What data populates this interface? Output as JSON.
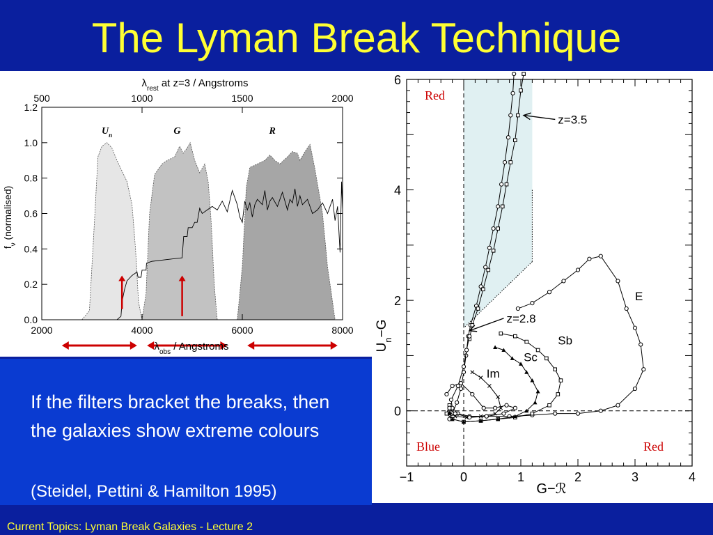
{
  "slide": {
    "title": "The Lyman Break Technique",
    "bullet": "If the filters bracket the breaks, then the galaxies show extreme colours",
    "citation": "(Steidel, Pettini & Hamilton 1995)",
    "footer": "Current Topics:  Lyman Break Galaxies - Lecture 2"
  },
  "colors": {
    "background": "#0a1f9e",
    "title": "#ffff33",
    "text_panel": "#0a3bd1",
    "arrow": "#cc0000",
    "shade": "#e0f0f2"
  },
  "chart_data": [
    {
      "type": "area",
      "top_axis_label_symbol": "λ",
      "top_axis_label_sub": "rest",
      "top_axis_label_rest": " at z=3 / Angstroms",
      "bottom_axis_label_symbol": "λ",
      "bottom_axis_label_sub": "obs",
      "bottom_axis_label_rest": " / Angstroms",
      "ylabel_symbol": "f",
      "ylabel_sub": "ν",
      "ylabel_rest": " (normalised)",
      "xlim": [
        2000,
        8000
      ],
      "top_xlim": [
        500,
        2000
      ],
      "ylim": [
        0,
        1.2
      ],
      "x_ticks": [
        "2000",
        "4000",
        "6000",
        "8000"
      ],
      "x_tick_values": [
        2000,
        4000,
        6000,
        8000
      ],
      "top_ticks": [
        "500",
        "1000",
        "1500",
        "2000"
      ],
      "top_tick_values": [
        500,
        1000,
        1500,
        2000
      ],
      "y_ticks": [
        "0.0",
        "0.2",
        "0.4",
        "0.6",
        "0.8",
        "1.0",
        "1.2"
      ],
      "y_tick_values": [
        0,
        0.2,
        0.4,
        0.6,
        0.8,
        1.0,
        1.2
      ],
      "filters": [
        {
          "name": "U",
          "sub": "n",
          "label_x": 3300,
          "points": [
            [
              2800,
              0
            ],
            [
              2950,
              0.05
            ],
            [
              3050,
              0.55
            ],
            [
              3120,
              0.92
            ],
            [
              3200,
              0.98
            ],
            [
              3300,
              1.0
            ],
            [
              3400,
              0.97
            ],
            [
              3500,
              0.9
            ],
            [
              3600,
              0.84
            ],
            [
              3700,
              0.78
            ],
            [
              3800,
              0.65
            ],
            [
              3870,
              0.4
            ],
            [
              3930,
              0.1
            ],
            [
              4000,
              0
            ]
          ]
        },
        {
          "name": "G",
          "sub": "",
          "label_x": 4700,
          "points": [
            [
              4000,
              0
            ],
            [
              4080,
              0.15
            ],
            [
              4150,
              0.6
            ],
            [
              4250,
              0.82
            ],
            [
              4400,
              0.88
            ],
            [
              4500,
              0.9
            ],
            [
              4650,
              0.92
            ],
            [
              4750,
              0.98
            ],
            [
              4820,
              0.94
            ],
            [
              4900,
              0.97
            ],
            [
              4960,
              1.0
            ],
            [
              5050,
              0.9
            ],
            [
              5150,
              0.83
            ],
            [
              5250,
              0.88
            ],
            [
              5320,
              0.78
            ],
            [
              5380,
              0.55
            ],
            [
              5440,
              0.2
            ],
            [
              5500,
              0
            ]
          ]
        },
        {
          "name": "R",
          "sub": "",
          "label_x": 6600,
          "points": [
            [
              5900,
              0
            ],
            [
              6000,
              0.3
            ],
            [
              6080,
              0.75
            ],
            [
              6150,
              0.86
            ],
            [
              6300,
              0.88
            ],
            [
              6450,
              0.9
            ],
            [
              6550,
              0.93
            ],
            [
              6650,
              0.9
            ],
            [
              6750,
              0.88
            ],
            [
              6900,
              0.92
            ],
            [
              7000,
              0.95
            ],
            [
              7100,
              0.94
            ],
            [
              7150,
              0.9
            ],
            [
              7250,
              0.95
            ],
            [
              7350,
              0.99
            ],
            [
              7450,
              0.85
            ],
            [
              7600,
              0.6
            ],
            [
              7700,
              0.3
            ],
            [
              7850,
              0
            ]
          ]
        }
      ],
      "spectrum": [
        [
          3500,
          0
        ],
        [
          3580,
          0.02
        ],
        [
          3600,
          0.1
        ],
        [
          3650,
          0.17
        ],
        [
          3700,
          0.22
        ],
        [
          3800,
          0.25
        ],
        [
          3900,
          0.27
        ],
        [
          3920,
          0.24
        ],
        [
          3980,
          0.24
        ],
        [
          4000,
          0.28
        ],
        [
          4080,
          0.28
        ],
        [
          4090,
          0.32
        ],
        [
          4200,
          0.33
        ],
        [
          4500,
          0.34
        ],
        [
          4800,
          0.35
        ],
        [
          4830,
          0.47
        ],
        [
          4900,
          0.47
        ],
        [
          4920,
          0.52
        ],
        [
          5000,
          0.52
        ],
        [
          5050,
          0.55
        ],
        [
          5100,
          0.55
        ],
        [
          5150,
          0.63
        ],
        [
          5200,
          0.6
        ],
        [
          5300,
          0.62
        ],
        [
          5400,
          0.64
        ],
        [
          5500,
          0.62
        ],
        [
          5600,
          0.67
        ],
        [
          5700,
          0.61
        ],
        [
          5800,
          0.73
        ],
        [
          5850,
          0.69
        ],
        [
          5900,
          0.65
        ],
        [
          5950,
          0.58
        ],
        [
          6000,
          0.55
        ],
        [
          6050,
          0.67
        ],
        [
          6100,
          0.62
        ],
        [
          6150,
          0.66
        ],
        [
          6200,
          0.58
        ],
        [
          6250,
          0.65
        ],
        [
          6300,
          0.68
        ],
        [
          6400,
          0.65
        ],
        [
          6450,
          0.73
        ],
        [
          6500,
          0.62
        ],
        [
          6550,
          0.67
        ],
        [
          6600,
          0.69
        ],
        [
          6700,
          0.64
        ],
        [
          6750,
          0.68
        ],
        [
          6800,
          0.72
        ],
        [
          6900,
          0.62
        ],
        [
          6950,
          0.68
        ],
        [
          7000,
          0.66
        ],
        [
          7050,
          0.74
        ],
        [
          7100,
          0.64
        ],
        [
          7150,
          0.7
        ],
        [
          7200,
          0.65
        ],
        [
          7300,
          0.68
        ],
        [
          7400,
          0.6
        ],
        [
          7500,
          0.62
        ],
        [
          7600,
          0.66
        ],
        [
          7700,
          0.6
        ],
        [
          7800,
          0.68
        ],
        [
          7850,
          0.56
        ],
        [
          7900,
          0.64
        ],
        [
          7950,
          0.38
        ],
        [
          7980,
          0.78
        ],
        [
          8000,
          0.62
        ]
      ],
      "vertical_arrows": [
        [
          3600,
          0.06,
          0.25
        ],
        [
          4800,
          0.02,
          0.25
        ]
      ],
      "horizontal_arrows": [
        [
          2400,
          3900
        ],
        [
          4100,
          5700
        ],
        [
          6100,
          7900
        ]
      ]
    },
    {
      "type": "line",
      "xlabel": "G−ℛ",
      "ylabel_main": "U",
      "ylabel_sub": "n",
      "ylabel_rest": "−G",
      "xlim": [
        -1,
        4
      ],
      "ylim": [
        -1,
        6
      ],
      "x_ticks": [
        "−1",
        "0",
        "1",
        "2",
        "3",
        "4"
      ],
      "x_tick_values": [
        -1,
        0,
        1,
        2,
        3,
        4
      ],
      "y_ticks": [
        "0",
        "2",
        "4",
        "6"
      ],
      "y_tick_values": [
        0,
        2,
        4,
        6
      ],
      "corner_labels": {
        "top_left": "Red",
        "bottom_left": "Blue",
        "bottom_right": "Red"
      },
      "selection_region": [
        [
          0,
          6
        ],
        [
          1.2,
          6
        ],
        [
          1.2,
          2.7
        ],
        [
          0,
          1.5
        ]
      ],
      "annotations": [
        {
          "text": "z=3.5",
          "x": 1.65,
          "y": 5.2,
          "arrow_to": [
            1.05,
            5.35
          ]
        },
        {
          "text": "z=2.8",
          "x": 0.75,
          "y": 1.6,
          "arrow_to": [
            0.1,
            1.45
          ]
        },
        {
          "text": "E",
          "x": 3.0,
          "y": 2.0
        },
        {
          "text": "Sb",
          "x": 1.65,
          "y": 1.2
        },
        {
          "text": "Sc",
          "x": 1.05,
          "y": 0.9
        },
        {
          "text": "Im",
          "x": 0.4,
          "y": 0.6
        }
      ],
      "series": [
        {
          "marker": "circle",
          "values": [
            [
              0.88,
              6.1
            ],
            [
              0.86,
              5.75
            ],
            [
              0.82,
              5.35
            ],
            [
              0.78,
              4.95
            ],
            [
              0.72,
              4.5
            ],
            [
              0.66,
              4.1
            ],
            [
              0.6,
              3.7
            ],
            [
              0.52,
              3.3
            ],
            [
              0.45,
              2.95
            ],
            [
              0.38,
              2.6
            ],
            [
              0.3,
              2.25
            ],
            [
              0.22,
              1.9
            ],
            [
              0.12,
              1.55
            ],
            [
              0.08,
              1.35
            ],
            [
              0.04,
              1.0
            ],
            [
              0.0,
              0.7
            ],
            [
              -0.05,
              0.4
            ],
            [
              -0.12,
              0.15
            ],
            [
              -0.2,
              -0.05
            ],
            [
              -0.25,
              -0.15
            ]
          ]
        },
        {
          "marker": "square",
          "values": [
            [
              1.05,
              6.1
            ],
            [
              1.0,
              5.8
            ],
            [
              0.95,
              5.35
            ],
            [
              0.9,
              4.9
            ],
            [
              0.82,
              4.5
            ],
            [
              0.75,
              4.1
            ],
            [
              0.68,
              3.7
            ],
            [
              0.6,
              3.3
            ],
            [
              0.52,
              2.9
            ],
            [
              0.43,
              2.55
            ],
            [
              0.34,
              2.2
            ],
            [
              0.25,
              1.85
            ],
            [
              0.15,
              1.55
            ],
            [
              0.1,
              1.3
            ]
          ]
        },
        {
          "marker": "circle",
          "values": [
            [
              0.95,
              1.85
            ],
            [
              1.2,
              1.95
            ],
            [
              1.5,
              2.15
            ],
            [
              1.75,
              2.35
            ],
            [
              2.0,
              2.55
            ],
            [
              2.2,
              2.75
            ],
            [
              2.4,
              2.8
            ],
            [
              2.7,
              2.35
            ],
            [
              2.85,
              1.85
            ],
            [
              3.0,
              1.5
            ],
            [
              3.1,
              1.2
            ],
            [
              3.15,
              0.75
            ],
            [
              3.0,
              0.4
            ],
            [
              2.7,
              0.1
            ],
            [
              2.4,
              0.0
            ],
            [
              2.0,
              -0.05
            ],
            [
              1.6,
              -0.05
            ],
            [
              1.2,
              -0.08
            ],
            [
              0.8,
              -0.1
            ],
            [
              0.4,
              -0.1
            ],
            [
              0.1,
              -0.1
            ],
            [
              -0.1,
              -0.05
            ],
            [
              -0.2,
              0.05
            ],
            [
              -0.22,
              0.2
            ],
            [
              -0.1,
              0.45
            ],
            [
              0.0,
              0.8
            ],
            [
              0.05,
              1.1
            ],
            [
              0.1,
              1.35
            ]
          ]
        },
        {
          "marker": "square",
          "values": [
            [
              0.65,
              1.4
            ],
            [
              0.9,
              1.35
            ],
            [
              1.1,
              1.25
            ],
            [
              1.3,
              1.1
            ],
            [
              1.45,
              0.95
            ],
            [
              1.6,
              0.75
            ],
            [
              1.7,
              0.55
            ],
            [
              1.65,
              0.3
            ],
            [
              1.5,
              0.1
            ],
            [
              1.2,
              -0.05
            ],
            [
              0.9,
              -0.12
            ],
            [
              0.6,
              -0.15
            ],
            [
              0.3,
              -0.18
            ],
            [
              0.0,
              -0.2
            ],
            [
              -0.2,
              -0.15
            ],
            [
              -0.3,
              -0.05
            ],
            [
              -0.25,
              0.1
            ]
          ]
        },
        {
          "marker": "triangle",
          "values": [
            [
              0.55,
              1.15
            ],
            [
              0.7,
              1.1
            ],
            [
              0.85,
              0.95
            ],
            [
              1.0,
              0.85
            ],
            [
              1.1,
              0.7
            ],
            [
              1.2,
              0.55
            ],
            [
              1.3,
              0.35
            ],
            [
              1.25,
              0.15
            ],
            [
              1.1,
              0.0
            ],
            [
              0.9,
              -0.1
            ],
            [
              0.6,
              -0.15
            ],
            [
              0.3,
              -0.18
            ],
            [
              0.0,
              -0.2
            ],
            [
              -0.2,
              -0.15
            ],
            [
              -0.25,
              -0.05
            ]
          ]
        },
        {
          "marker": "cross",
          "values": [
            [
              0.15,
              0.7
            ],
            [
              0.3,
              0.6
            ],
            [
              0.45,
              0.45
            ],
            [
              0.6,
              0.25
            ],
            [
              0.65,
              0.05
            ],
            [
              0.55,
              -0.05
            ],
            [
              0.3,
              -0.1
            ],
            [
              0.05,
              -0.12
            ],
            [
              -0.15,
              -0.1
            ],
            [
              -0.25,
              -0.02
            ]
          ]
        },
        {
          "marker": "circle",
          "values": [
            [
              -0.3,
              0.3
            ],
            [
              -0.2,
              0.45
            ],
            [
              -0.05,
              0.5
            ],
            [
              0.15,
              0.3
            ],
            [
              0.35,
              0.05
            ],
            [
              0.55,
              0.05
            ],
            [
              0.75,
              0.1
            ],
            [
              0.9,
              0.05
            ],
            [
              0.7,
              -0.05
            ],
            [
              0.4,
              -0.1
            ],
            [
              0.1,
              -0.12
            ],
            [
              -0.15,
              -0.05
            ],
            [
              -0.25,
              0.05
            ]
          ]
        }
      ]
    }
  ]
}
